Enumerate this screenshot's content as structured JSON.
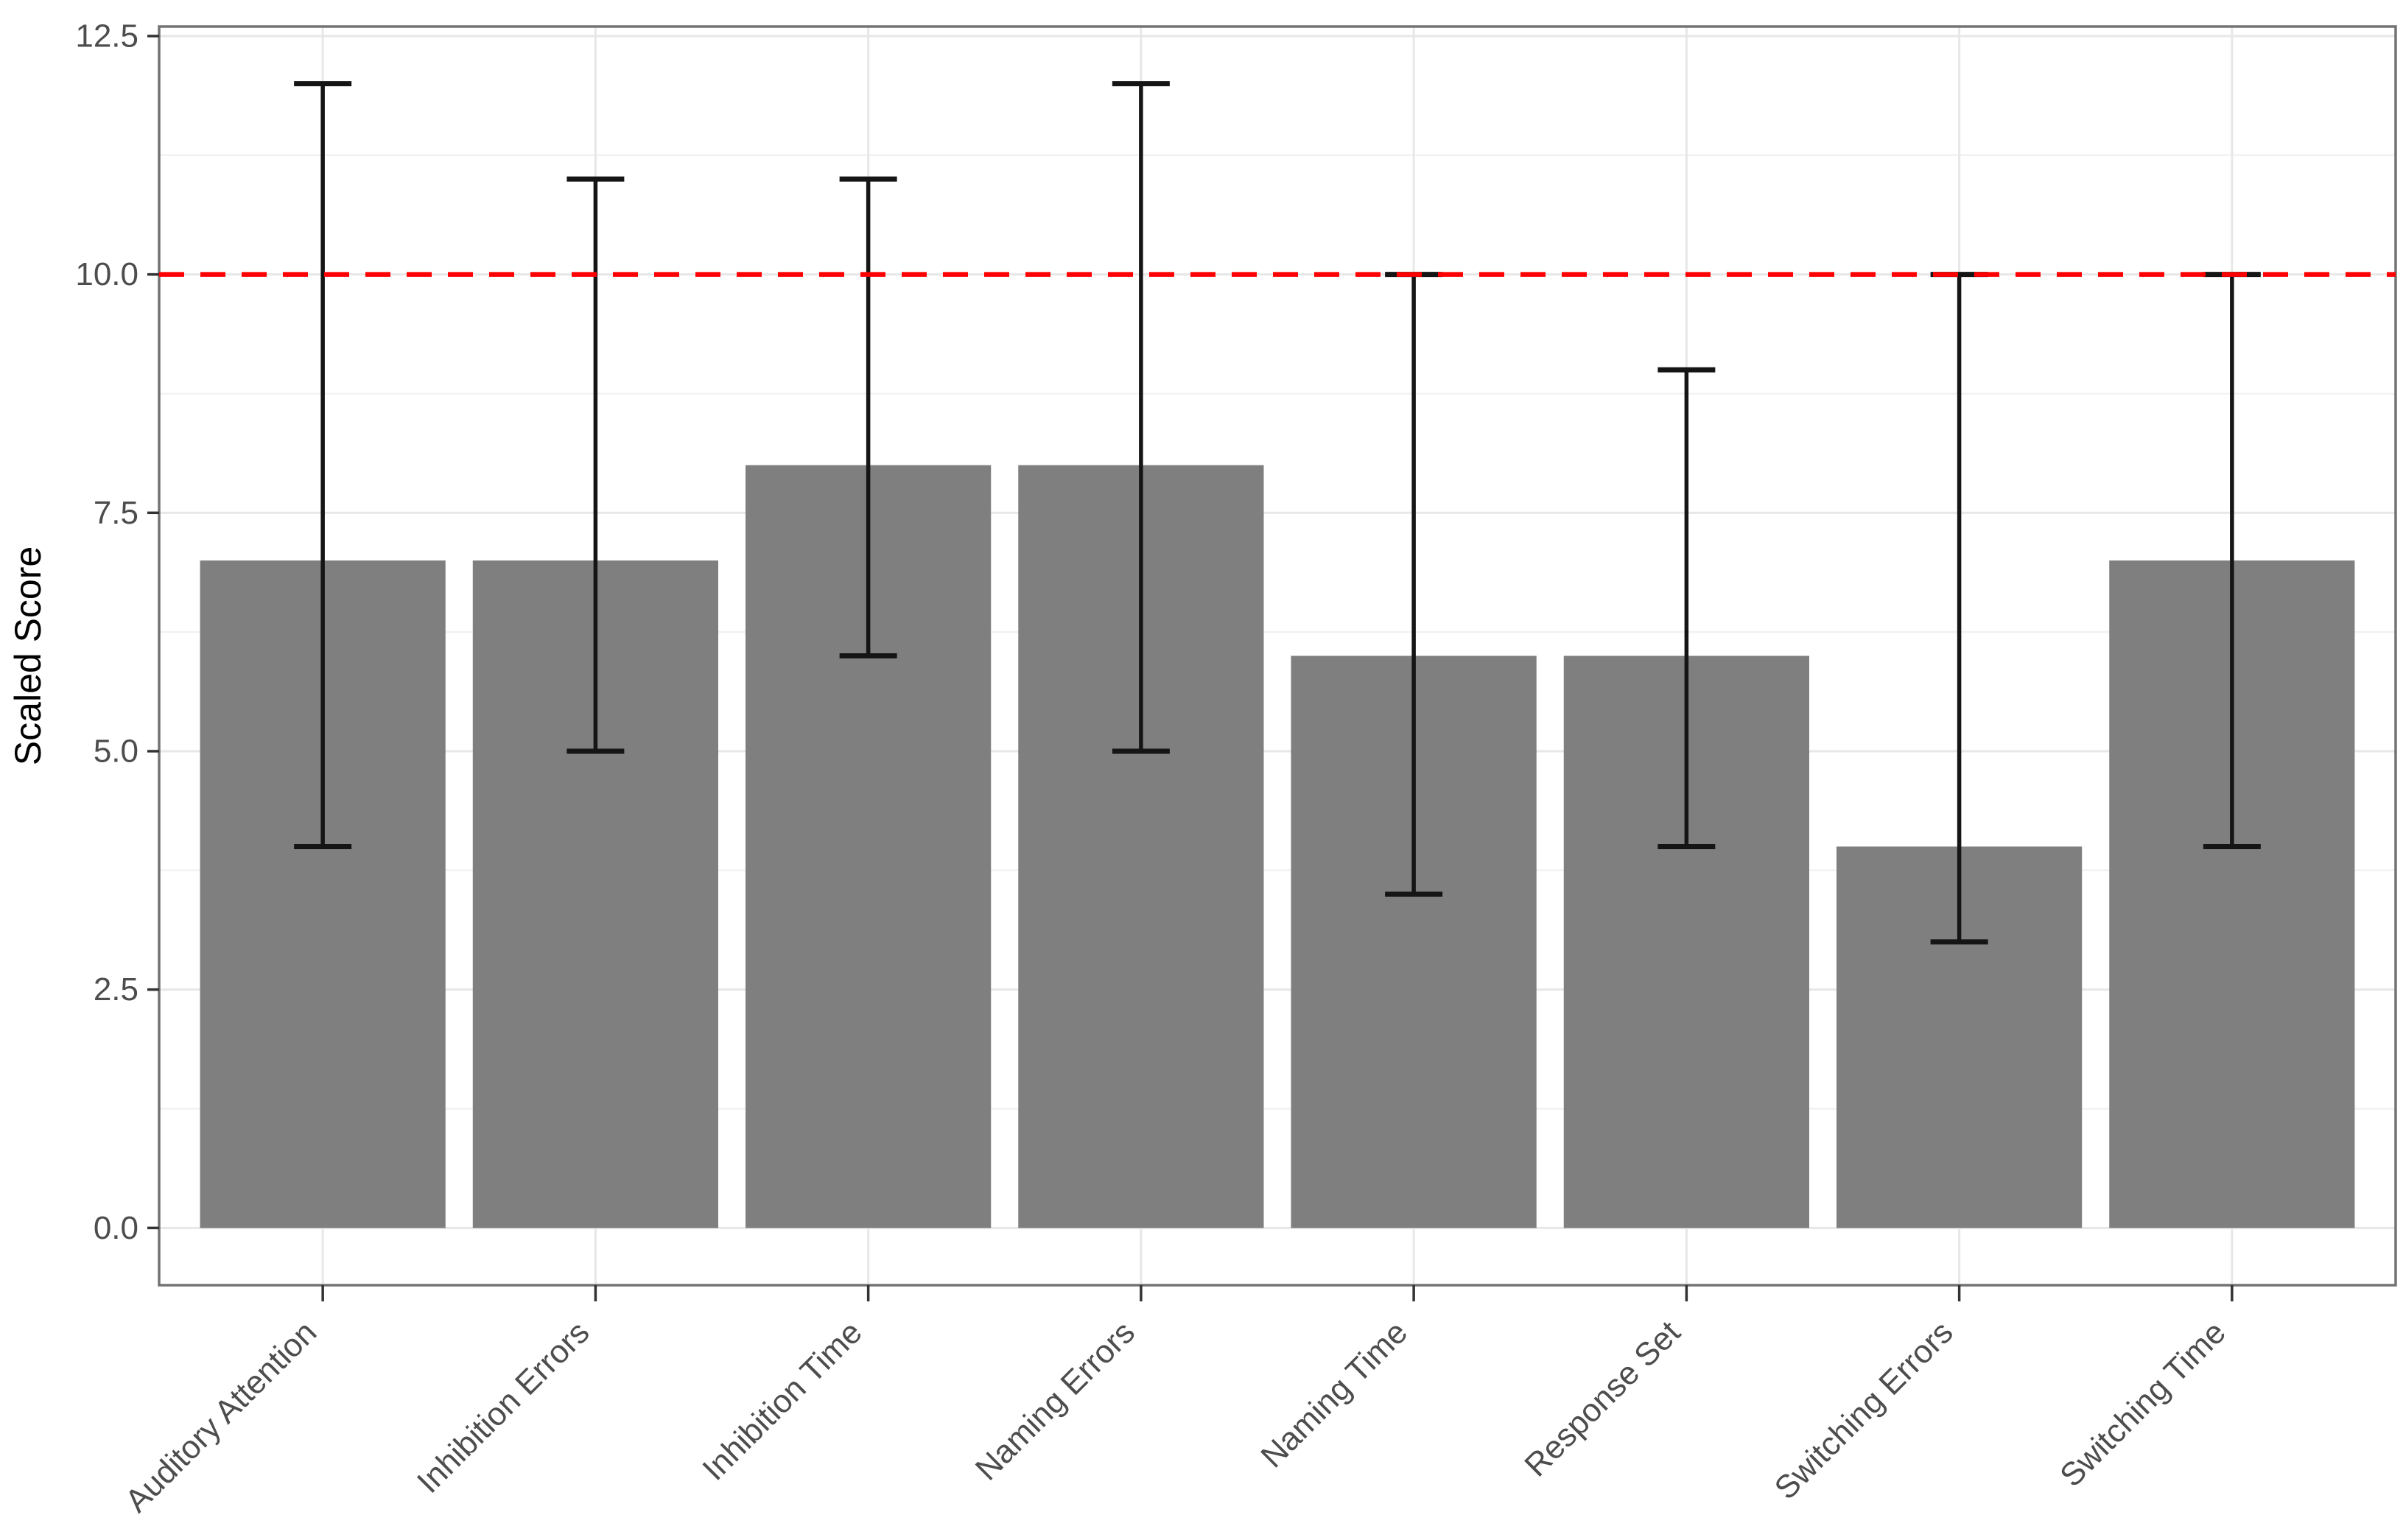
{
  "figure": {
    "background": "#ffffff"
  },
  "chart_data": {
    "type": "bar",
    "title": "",
    "xlabel": "",
    "ylabel": "Scaled Score",
    "categories": [
      "Auditory Attention",
      "Inhibition Errors",
      "Inhibition Time",
      "Naming Errors",
      "Naming Time",
      "Response Set",
      "Switching Errors",
      "Switching Time"
    ],
    "values": [
      7,
      7,
      8,
      8,
      6,
      6,
      4,
      7
    ],
    "error_low": [
      4,
      5,
      6,
      5,
      3.5,
      4,
      3,
      4
    ],
    "error_high": [
      12,
      11,
      11,
      12,
      10,
      9,
      10,
      10
    ],
    "reference_line": {
      "y": 10,
      "color": "#ff0000",
      "style": "dashed"
    },
    "y_ticks": [
      "0.0",
      "2.5",
      "5.0",
      "7.5",
      "10.0",
      "12.5"
    ],
    "y_tick_values": [
      0,
      2.5,
      5,
      7.5,
      10,
      12.5
    ],
    "y_minor_tick_values": [
      1.25,
      3.75,
      6.25,
      8.75,
      11.25
    ],
    "ylim": [
      -0.6,
      12.6
    ],
    "grid": true,
    "legend": "none",
    "x_label_rotation": 45,
    "style": {
      "bar_color": "#7f7f7f",
      "error_bar_color": "#151515",
      "grid_major": "#e7e7e7",
      "grid_minor": "#f2f2f2",
      "panel_border": "#737373",
      "tick_color": "#333333",
      "tick_label_color": "#4d4d4d",
      "axis_title_color": "#000000",
      "background": "#ffffff"
    }
  }
}
